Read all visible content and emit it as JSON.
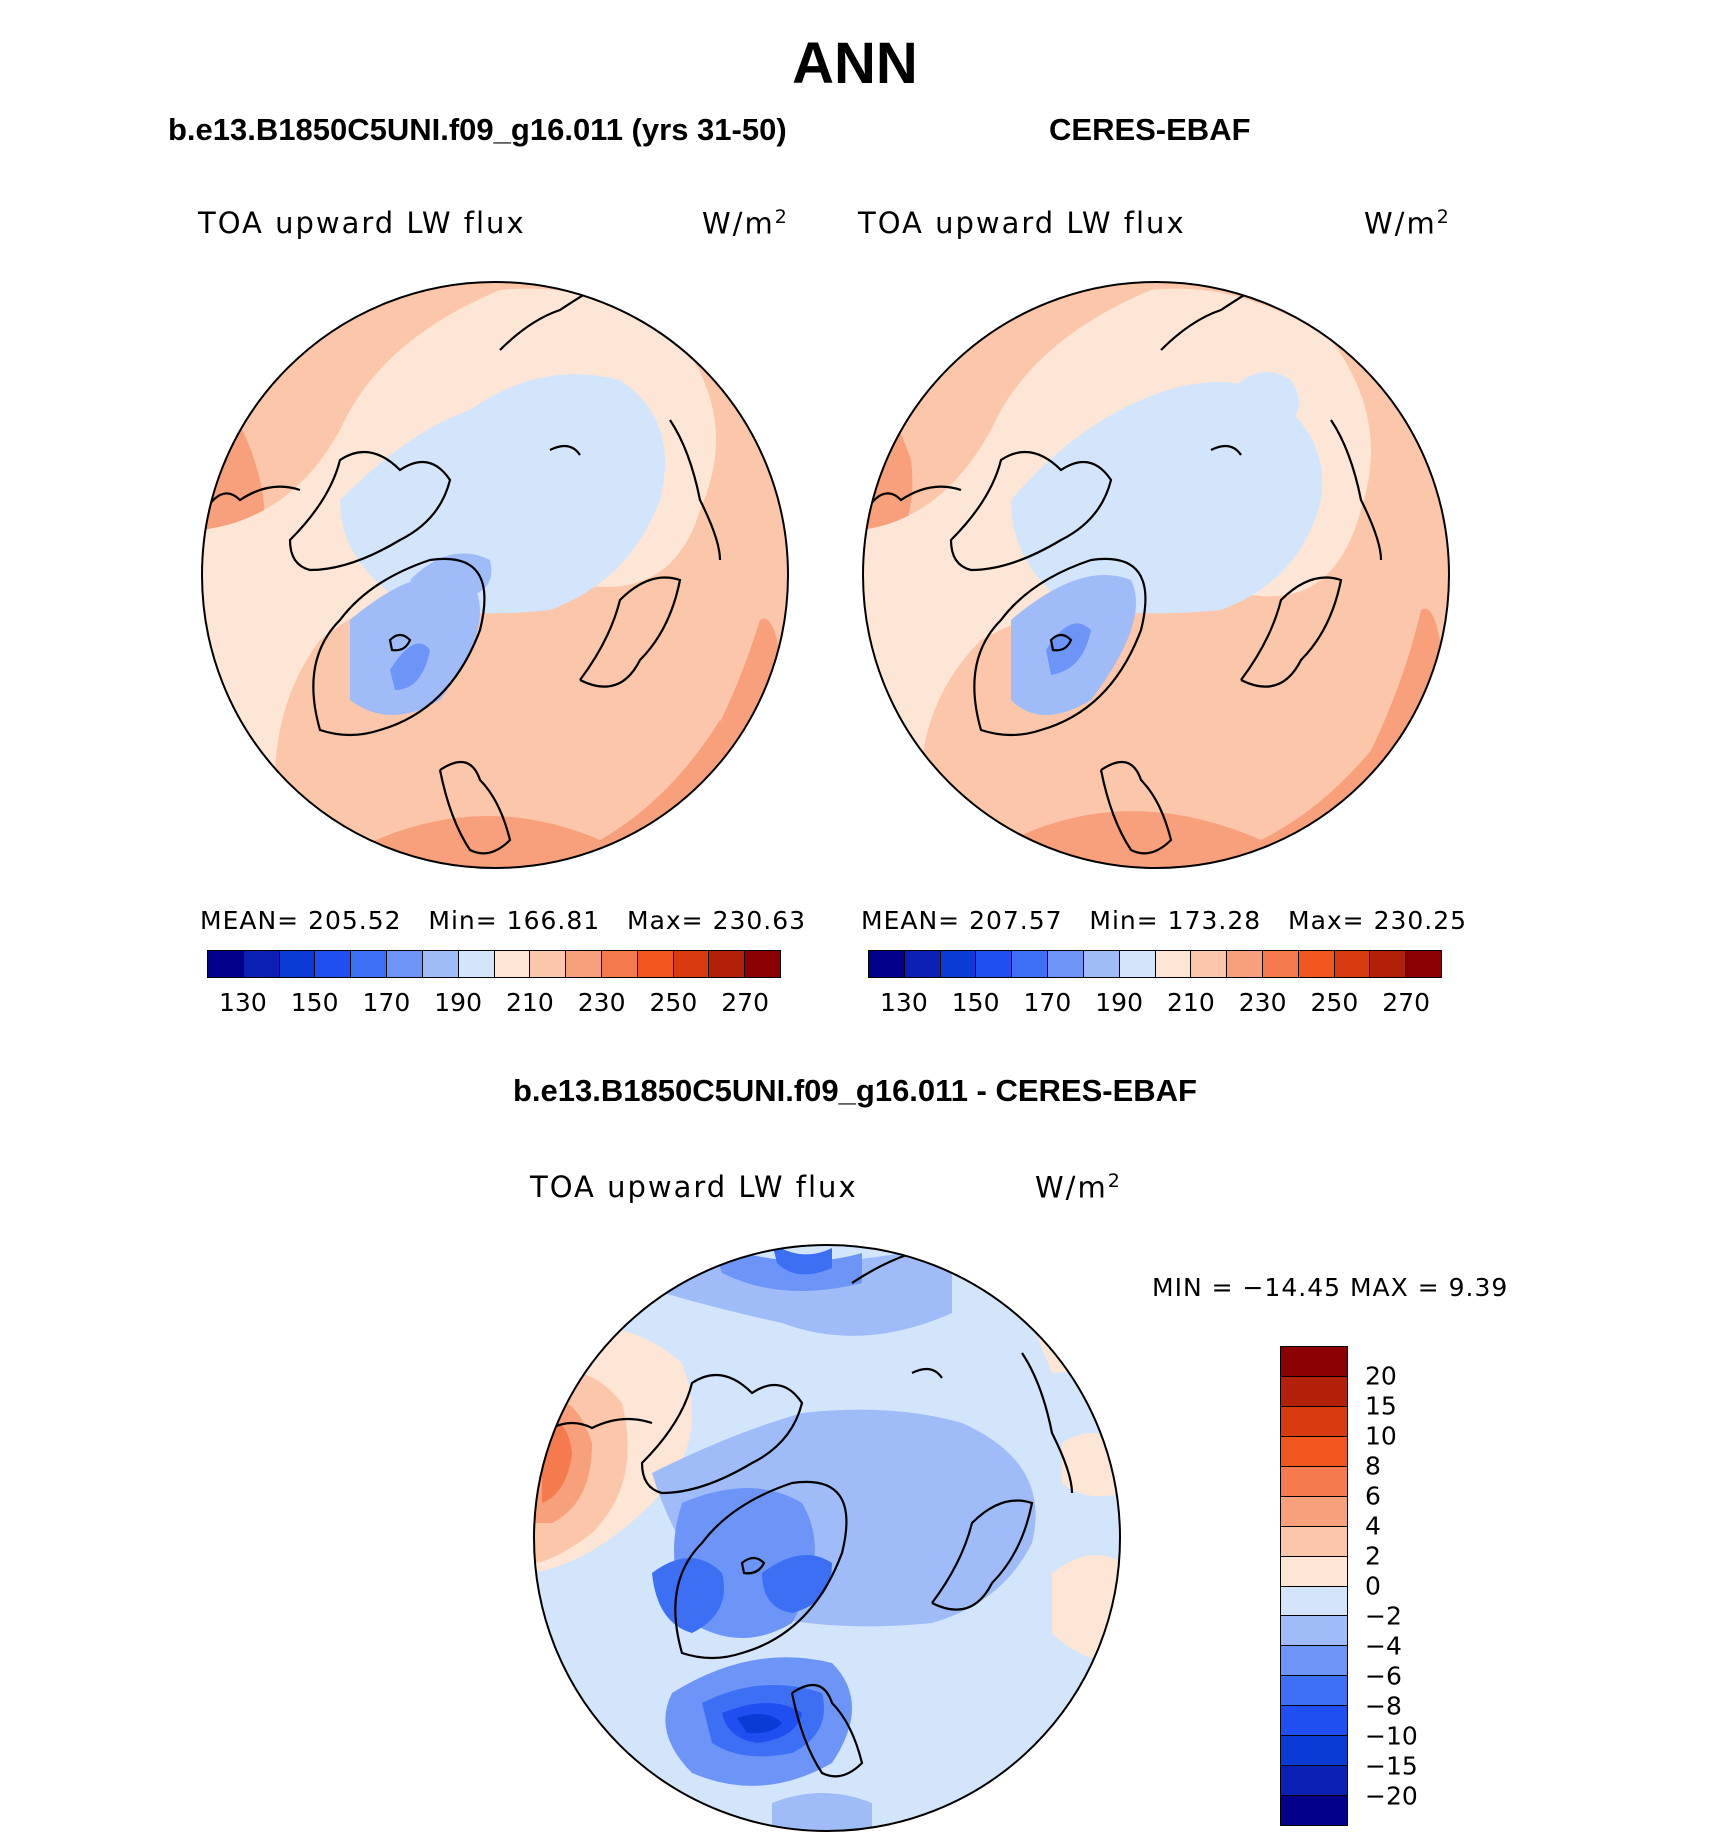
{
  "title": "ANN",
  "panels": [
    {
      "case": "b.e13.B1850C5UNI.f09_g16.011 (yrs 31-50)",
      "variable": "TOA upward LW flux",
      "units": "W/m",
      "units_exp": "2",
      "stats": {
        "mean_label": "MEAN=",
        "mean": "205.52",
        "min_label": "Min=",
        "min": "166.81",
        "max_label": "Max=",
        "max": "230.63"
      }
    },
    {
      "case": "CERES-EBAF",
      "variable": "TOA upward LW flux",
      "units": "W/m",
      "units_exp": "2",
      "stats": {
        "mean_label": "MEAN=",
        "mean": "207.57",
        "min_label": "Min=",
        "min": "173.28",
        "max_label": "Max=",
        "max": "230.25"
      }
    }
  ],
  "diff_panel": {
    "case": "b.e13.B1850C5UNI.f09_g16.011 - CERES-EBAF",
    "variable": "TOA upward LW flux",
    "units": "W/m",
    "units_exp": "2",
    "minmax": "MIN = −14.45 MAX =    9.39"
  },
  "colorbar_abs": {
    "labels": [
      "130",
      "150",
      "170",
      "190",
      "210",
      "230",
      "250",
      "270"
    ],
    "colors": [
      "#00008b",
      "#0a1fb4",
      "#0b3bd6",
      "#1f4ff0",
      "#3d6ff5",
      "#6d95f7",
      "#a0bcf8",
      "#d3e5fb",
      "#fde6d5",
      "#fbc6a9",
      "#f7a07b",
      "#f57a4e",
      "#f2561f",
      "#d93a10",
      "#b3200a",
      "#8b0000"
    ]
  },
  "colorbar_diff": {
    "labels": [
      "20",
      "15",
      "10",
      "8",
      "6",
      "4",
      "2",
      "0",
      "−2",
      "−4",
      "−6",
      "−8",
      "−10",
      "−15",
      "−20"
    ],
    "colors": [
      "#8b0000",
      "#b3200a",
      "#d93a10",
      "#f2561f",
      "#f57a4e",
      "#f7a07b",
      "#fbc6a9",
      "#fde6d5",
      "#d3e5fb",
      "#a0bcf8",
      "#6d95f7",
      "#3d6ff5",
      "#1f4ff0",
      "#0b3bd6",
      "#0a1fb4",
      "#00008b"
    ]
  }
}
